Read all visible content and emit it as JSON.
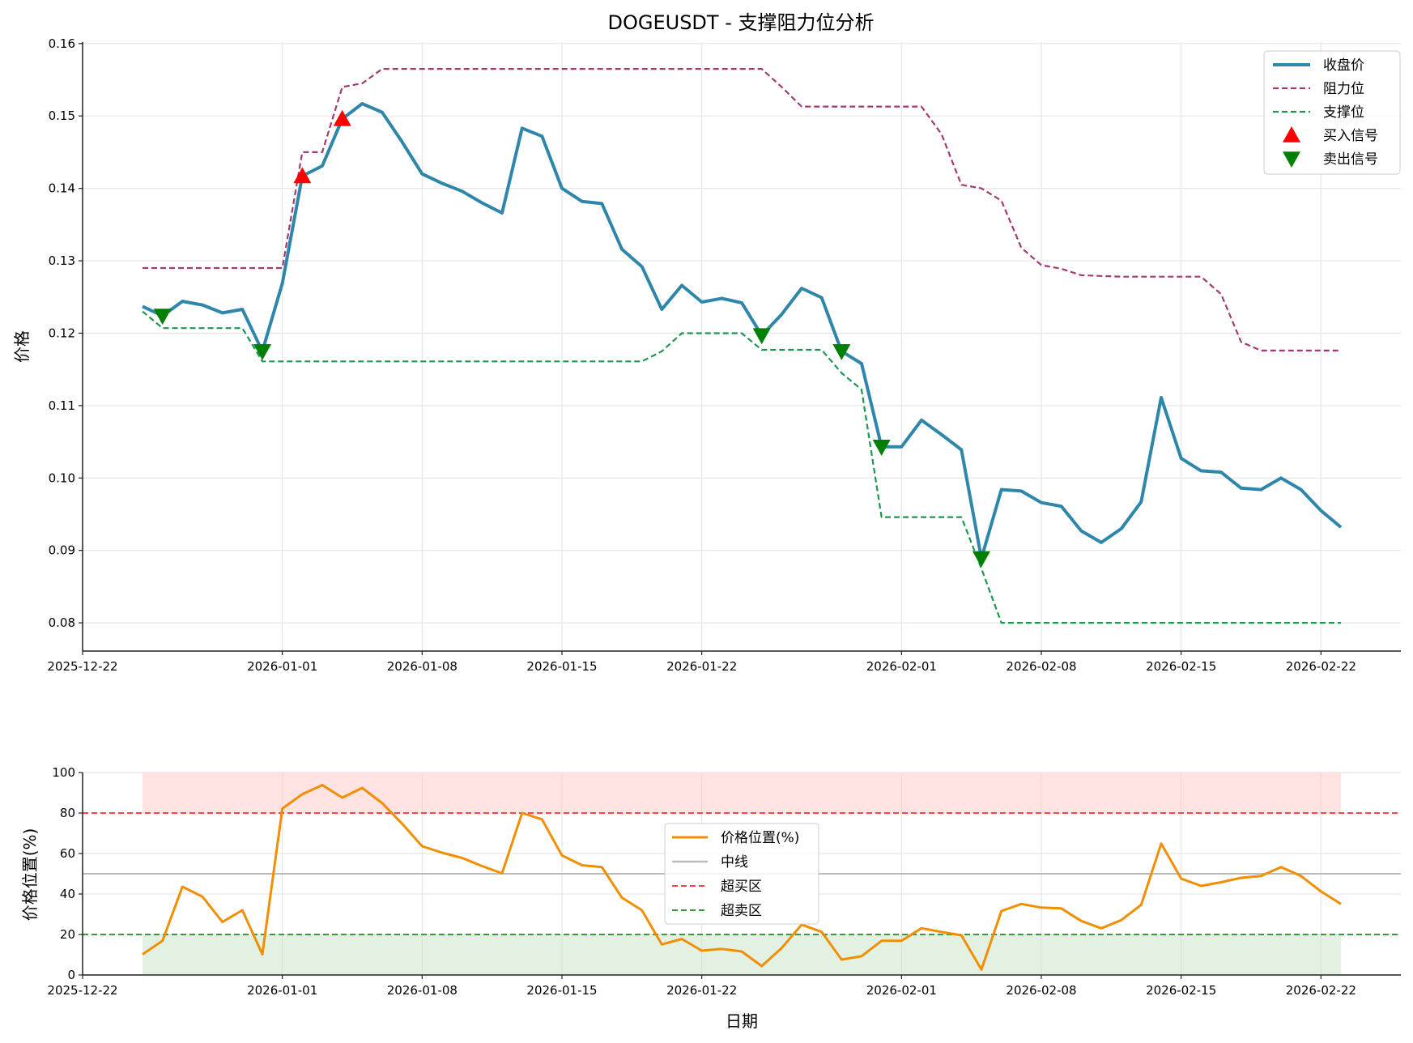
{
  "chart_data": [
    {
      "type": "line",
      "title": "DOGEUSDT - 支撑阻力位分析",
      "xlabel": "",
      "ylabel": "价格",
      "xlim": [
        "2025-12-22",
        "2026-02-26"
      ],
      "ylim": [
        0.0761,
        0.1602
      ],
      "grid": true,
      "legend_position": "top-right",
      "x_tick_labels": [
        "2025-12-22",
        "2026-01-01",
        "2026-01-08",
        "2026-01-15",
        "2026-01-22",
        "2026-02-01",
        "2026-02-08",
        "2026-02-15",
        "2026-02-22"
      ],
      "y_tick_labels": [
        "0.08",
        "0.09",
        "0.10",
        "0.11",
        "0.12",
        "0.13",
        "0.14",
        "0.15",
        "0.16"
      ],
      "x": [
        "2025-12-25",
        "2025-12-26",
        "2025-12-27",
        "2025-12-28",
        "2025-12-29",
        "2025-12-30",
        "2025-12-31",
        "2026-01-01",
        "2026-01-02",
        "2026-01-03",
        "2026-01-04",
        "2026-01-05",
        "2026-01-06",
        "2026-01-07",
        "2026-01-08",
        "2026-01-09",
        "2026-01-10",
        "2026-01-11",
        "2026-01-12",
        "2026-01-13",
        "2026-01-14",
        "2026-01-15",
        "2026-01-16",
        "2026-01-17",
        "2026-01-18",
        "2026-01-19",
        "2026-01-20",
        "2026-01-21",
        "2026-01-22",
        "2026-01-23",
        "2026-01-24",
        "2026-01-25",
        "2026-01-26",
        "2026-01-27",
        "2026-01-28",
        "2026-01-29",
        "2026-01-30",
        "2026-01-31",
        "2026-02-01",
        "2026-02-02",
        "2026-02-03",
        "2026-02-04",
        "2026-02-05",
        "2026-02-06",
        "2026-02-07",
        "2026-02-08",
        "2026-02-09",
        "2026-02-10",
        "2026-02-11",
        "2026-02-12",
        "2026-02-13",
        "2026-02-14",
        "2026-02-15",
        "2026-02-16",
        "2026-02-17",
        "2026-02-18",
        "2026-02-19",
        "2026-02-20",
        "2026-02-21",
        "2026-02-22",
        "2026-02-23"
      ],
      "series": [
        {
          "name": "收盘价",
          "style": "solid",
          "color": "#2E86AB",
          "values": [
            0.1237,
            0.1224,
            0.1244,
            0.1239,
            0.1228,
            0.1233,
            0.1175,
            0.1269,
            0.1417,
            0.1431,
            0.1496,
            0.1517,
            0.1505,
            0.1464,
            0.142,
            0.1407,
            0.1396,
            0.138,
            0.1366,
            0.1483,
            0.1472,
            0.14,
            0.1382,
            0.1379,
            0.1316,
            0.1292,
            0.1233,
            0.1266,
            0.1243,
            0.1248,
            0.1242,
            0.1197,
            0.1226,
            0.1262,
            0.1249,
            0.1175,
            0.1158,
            0.1043,
            0.1043,
            0.108,
            0.106,
            0.1039,
            0.0889,
            0.0984,
            0.0982,
            0.0966,
            0.0961,
            0.0927,
            0.0911,
            0.093,
            0.0967,
            0.1111,
            0.1027,
            0.101,
            0.1008,
            0.0986,
            0.0984,
            0.1,
            0.0984,
            0.0955,
            0.0932
          ]
        },
        {
          "name": "阻力位",
          "style": "dashed",
          "color": "#A23B72",
          "values": [
            0.129,
            0.129,
            0.129,
            0.129,
            0.129,
            0.129,
            0.129,
            0.129,
            0.145,
            0.145,
            0.154,
            0.1545,
            0.1565,
            0.1565,
            0.1565,
            0.1565,
            0.1565,
            0.1565,
            0.1565,
            0.1565,
            0.1565,
            0.1565,
            0.1565,
            0.1565,
            0.1565,
            0.1565,
            0.1565,
            0.1565,
            0.1565,
            0.1565,
            0.1565,
            0.1565,
            0.154,
            0.1513,
            0.1513,
            0.1513,
            0.1513,
            0.1513,
            0.1513,
            0.1513,
            0.1475,
            0.1405,
            0.14,
            0.1383,
            0.1318,
            0.1294,
            0.1289,
            0.128,
            0.1279,
            0.1278,
            0.1278,
            0.1278,
            0.1278,
            0.1278,
            0.1254,
            0.1188,
            0.1176,
            0.1176,
            0.1176,
            0.1176,
            0.1176
          ]
        },
        {
          "name": "支撑位",
          "style": "dashed",
          "color": "#1E9650",
          "values": [
            0.123,
            0.1207,
            0.1207,
            0.1207,
            0.1207,
            0.1207,
            0.1161,
            0.1161,
            0.1161,
            0.1161,
            0.1161,
            0.1161,
            0.1161,
            0.1161,
            0.1161,
            0.1161,
            0.1161,
            0.1161,
            0.1161,
            0.1161,
            0.1161,
            0.1161,
            0.1161,
            0.1161,
            0.1161,
            0.1161,
            0.1175,
            0.12,
            0.12,
            0.12,
            0.12,
            0.1177,
            0.1177,
            0.1177,
            0.1177,
            0.1145,
            0.1122,
            0.0946,
            0.0946,
            0.0946,
            0.0946,
            0.0946,
            0.0875,
            0.08,
            0.08,
            0.08,
            0.08,
            0.08,
            0.08,
            0.08,
            0.08,
            0.08,
            0.08,
            0.08,
            0.08,
            0.08,
            0.08,
            0.08,
            0.08,
            0.08,
            0.08
          ]
        }
      ],
      "signals": [
        {
          "name": "买入信号",
          "marker": "triangle-up",
          "color": "#FF0000",
          "dates": [
            "2026-01-02",
            "2026-01-04"
          ],
          "values": [
            0.1417,
            0.1496
          ]
        },
        {
          "name": "卖出信号",
          "marker": "triangle-down",
          "color": "#008000",
          "dates": [
            "2025-12-26",
            "2025-12-31",
            "2026-01-25",
            "2026-01-29",
            "2026-01-31",
            "2026-02-05"
          ],
          "values": [
            0.1224,
            0.1175,
            0.1197,
            0.1175,
            0.1043,
            0.0889
          ]
        }
      ]
    },
    {
      "type": "line",
      "title": "",
      "xlabel": "日期",
      "ylabel": "价格位置(%)",
      "xlim": [
        "2025-12-22",
        "2026-02-26"
      ],
      "ylim": [
        0,
        100
      ],
      "grid": true,
      "legend_position": "center",
      "x_tick_labels": [
        "2025-12-22",
        "2026-01-01",
        "2026-01-08",
        "2026-01-15",
        "2026-01-22",
        "2026-02-01",
        "2026-02-08",
        "2026-02-15",
        "2026-02-22"
      ],
      "y_tick_labels": [
        "0",
        "20",
        "40",
        "60",
        "80",
        "100"
      ],
      "series": [
        {
          "name": "价格位置(%)",
          "style": "solid",
          "color": "#F18F01",
          "values": [
            10.2,
            16.9,
            43.6,
            38.7,
            26.2,
            32.0,
            10.2,
            82.2,
            89.3,
            93.8,
            87.6,
            92.4,
            84.9,
            74.7,
            63.6,
            60.4,
            57.8,
            53.8,
            50.2,
            80.0,
            76.9,
            59.1,
            54.2,
            53.3,
            38.2,
            32.0,
            15.1,
            17.8,
            12.0,
            12.9,
            11.6,
            4.4,
            13.3,
            24.9,
            21.3,
            7.6,
            9.3,
            16.9,
            16.9,
            23.1,
            21.3,
            19.6,
            2.7,
            31.6,
            35.1,
            33.3,
            32.9,
            26.7,
            23.1,
            27.1,
            34.7,
            64.9,
            47.6,
            44.0,
            45.8,
            48.0,
            48.9,
            53.3,
            48.9,
            41.3,
            35.1
          ]
        }
      ],
      "reference_lines": [
        {
          "name": "中线",
          "value": 50,
          "style": "solid",
          "color": "#BBBBBB"
        },
        {
          "name": "超买区",
          "value": 80,
          "style": "dashed",
          "color": "#FF4444"
        },
        {
          "name": "超卖区",
          "value": 20,
          "style": "dashed",
          "color": "#3A9A3A"
        }
      ],
      "bands": [
        {
          "from": 80,
          "to": 100,
          "color": "#FFCCCC"
        },
        {
          "from": 0,
          "to": 20,
          "color": "#CCE5CC"
        }
      ]
    }
  ]
}
